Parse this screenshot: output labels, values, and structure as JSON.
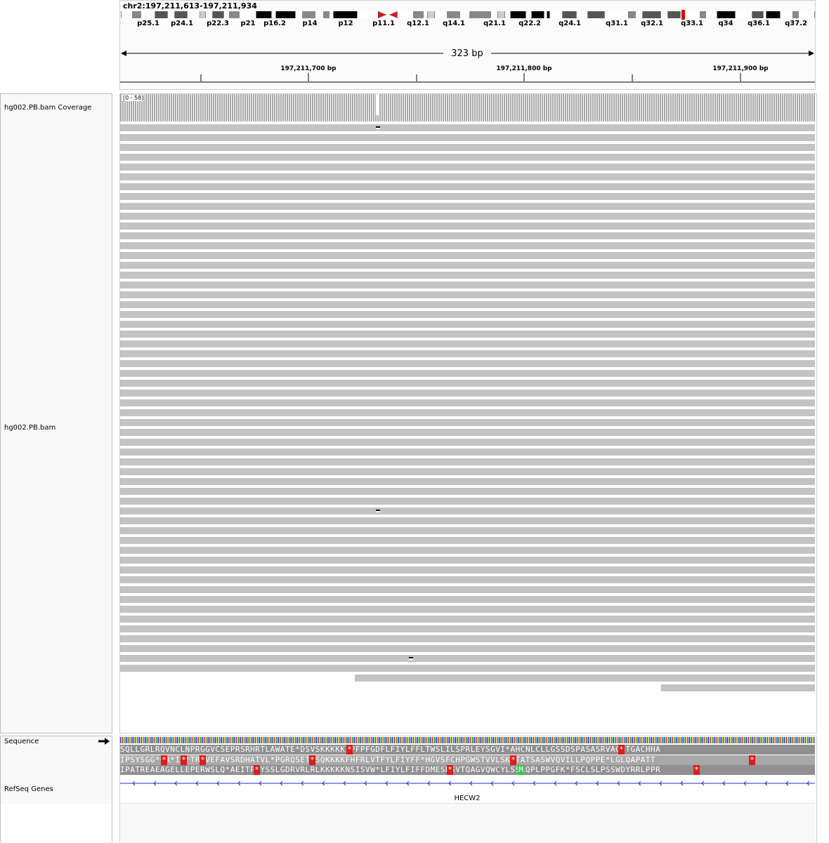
{
  "locus": "chr2:197,211,613-197,211,934",
  "ruler": {
    "span": "323 bp",
    "ticks": [
      "197,211,700 bp",
      "197,211,800 bp",
      "197,211,900 bp"
    ]
  },
  "ideogram": {
    "bands": [
      "p25.1",
      "p24.1",
      "p22.3",
      "p21",
      "p16.2",
      "p14",
      "p12",
      "p11.1",
      "q12.1",
      "q14.1",
      "q21.1",
      "q22.2",
      "q24.1",
      "q31.1",
      "q32.1",
      "q33.1",
      "q34",
      "q36.1",
      "q37.2"
    ]
  },
  "tracks": {
    "coverage_name": "hg002.PB.bam Coverage",
    "coverage_range": "[0 - 58]",
    "alignment_name": "hg002.PB.bam",
    "sequence_name": "Sequence",
    "genes_name": "RefSeq Genes",
    "gene_label": "HECW2"
  },
  "translation": {
    "frame1": "SQLLGRLRQVNCLNPRGGVCSEPRSRHRTLAWATE*DSVSKKKKKIPFPFGDFLFIYLFFLTWSLILSPRLEYSGVI*AHCNLCLLGSSDSPASASRVAGITGACHHA",
    "frame2": "IPSYSGG*GR*IA*TREVEFAVSRDHATVL*PGRQSETPSQKKKKFHFRLVTFYLFIYFF*HGVSFCHPGWSTVVLSKLTATSASWVQVILLPQPPE*LGLQAPATT",
    "frame3": "IPATREAEAGELLEPERWSLQ*AEITPPYSSLGDRVRLRLKKKKKNSISVW*LFIYLFIFFDMESHSVTQAGVQWCYLSSLQPLPPGFK*FSCLSLPSSWDYRRLPPR"
  }
}
